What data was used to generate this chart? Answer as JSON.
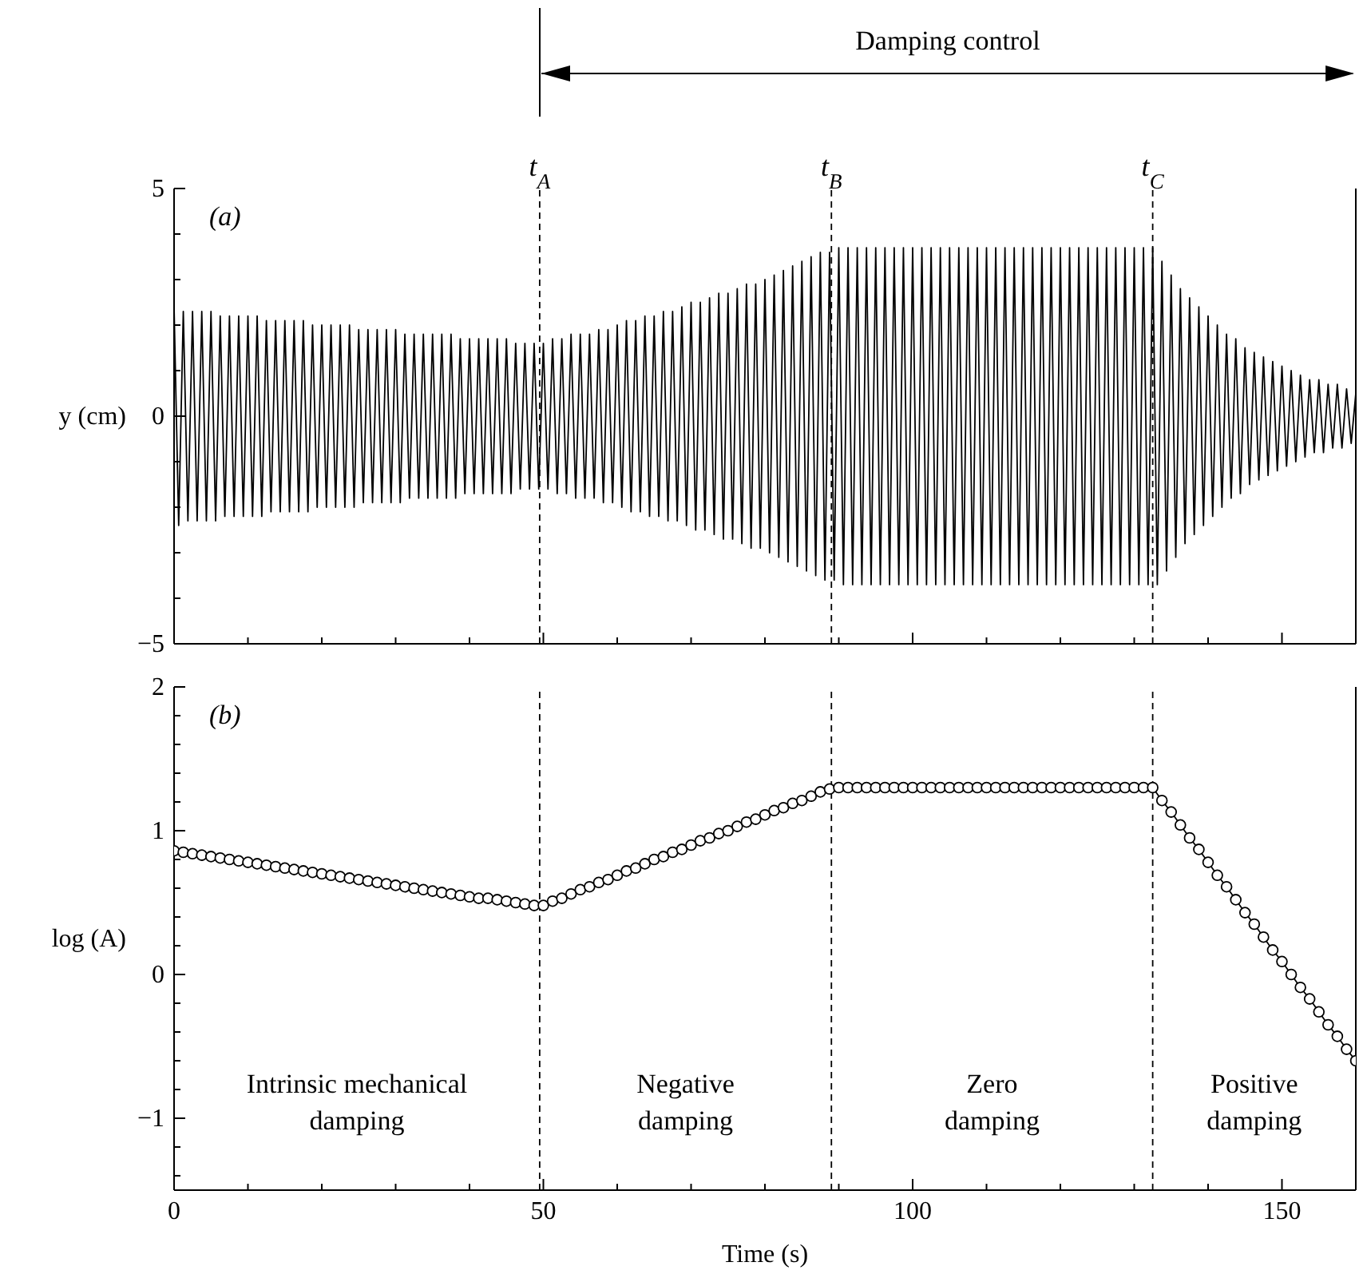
{
  "chart_data": [
    {
      "type": "line",
      "ylabel": "y (cm)",
      "xlim": [
        0,
        160
      ],
      "ylim": [
        -5,
        5
      ],
      "xticks": [
        0,
        {
          "value": 10,
          "label": null
        },
        {
          "value": 20,
          "label": null
        },
        {
          "value": 30,
          "label": null
        },
        {
          "value": 40,
          "label": null
        },
        50,
        {
          "value": 60,
          "label": null
        },
        {
          "value": 70,
          "label": null
        },
        {
          "value": 80,
          "label": null
        },
        {
          "value": 90,
          "label": null
        },
        100,
        {
          "value": 110,
          "label": null
        },
        {
          "value": 120,
          "label": null
        },
        {
          "value": 130,
          "label": null
        },
        {
          "value": 140,
          "label": null
        },
        150
      ],
      "yticks": [
        {
          "value": -5,
          "label": "−5"
        },
        {
          "value": -4,
          "label": null
        },
        {
          "value": -3,
          "label": null
        },
        {
          "value": -2,
          "label": null
        },
        {
          "value": -1,
          "label": null
        },
        0,
        {
          "value": 1,
          "label": null
        },
        {
          "value": 2,
          "label": null
        },
        {
          "value": 3,
          "label": null
        },
        {
          "value": 4,
          "label": null
        },
        5
      ],
      "tick_labels": "y",
      "marker": "none",
      "line_style": "solid",
      "annotations": [
        "(a)",
        "Damping control"
      ],
      "ref_lines": [
        {
          "axis": "x",
          "value": 49.5,
          "label": "t$_{A}$",
          "line_style": "dashed",
          "color": "#000000"
        },
        {
          "axis": "x",
          "value": 89,
          "label": "t$_{B}$",
          "line_style": "dashed",
          "color": "#000000"
        },
        {
          "axis": "x",
          "value": 132.5,
          "label": "t$_{C}$",
          "line_style": "dashed",
          "color": "#000000"
        }
      ],
      "series": [
        {
          "color": "#000000",
          "x": [
            0,
            0.625,
            1.25,
            1.875,
            2.5,
            3.125,
            3.75,
            4.375,
            5,
            5.625,
            6.25,
            6.875,
            7.5,
            8.125,
            8.75,
            9.375,
            10,
            10.625,
            11.25,
            11.875,
            12.5,
            13.125,
            13.75,
            14.375,
            15,
            15.625,
            16.25,
            16.875,
            17.5,
            18.125,
            18.75,
            19.375,
            20,
            20.625,
            21.25,
            21.875,
            22.5,
            23.125,
            23.75,
            24.375,
            25,
            25.625,
            26.25,
            26.875,
            27.5,
            28.125,
            28.75,
            29.375,
            30,
            30.625,
            31.25,
            31.875,
            32.5,
            33.125,
            33.75,
            34.375,
            35,
            35.625,
            36.25,
            36.875,
            37.5,
            38.125,
            38.75,
            39.375,
            40,
            40.625,
            41.25,
            41.875,
            42.5,
            43.125,
            43.75,
            44.375,
            45,
            45.625,
            46.25,
            46.875,
            47.5,
            48.125,
            48.75,
            49.375,
            50,
            50.625,
            51.25,
            51.875,
            52.5,
            53.125,
            53.75,
            54.375,
            55,
            55.625,
            56.25,
            56.875,
            57.5,
            58.125,
            58.75,
            59.375,
            60,
            60.625,
            61.25,
            61.875,
            62.5,
            63.125,
            63.75,
            64.375,
            65,
            65.625,
            66.25,
            66.875,
            67.5,
            68.125,
            68.75,
            69.375,
            70,
            70.625,
            71.25,
            71.875,
            72.5,
            73.125,
            73.75,
            74.375,
            75,
            75.625,
            76.25,
            76.875,
            77.5,
            78.125,
            78.75,
            79.375,
            80,
            80.625,
            81.25,
            81.875,
            82.5,
            83.125,
            83.75,
            84.375,
            85,
            85.625,
            86.25,
            86.875,
            87.5,
            88.125,
            88.75,
            89.375,
            90,
            90.625,
            91.25,
            91.875,
            92.5,
            93.125,
            93.75,
            94.375,
            95,
            95.625,
            96.25,
            96.875,
            97.5,
            98.125,
            98.75,
            99.375,
            100,
            100.625,
            101.25,
            101.875,
            102.5,
            103.125,
            103.75,
            104.375,
            105,
            105.625,
            106.25,
            106.875,
            107.5,
            108.125,
            108.75,
            109.375,
            110,
            110.625,
            111.25,
            111.875,
            112.5,
            113.125,
            113.75,
            114.375,
            115,
            115.625,
            116.25,
            116.875,
            117.5,
            118.125,
            118.75,
            119.375,
            120,
            120.625,
            121.25,
            121.875,
            122.5,
            123.125,
            123.75,
            124.375,
            125,
            125.625,
            126.25,
            126.875,
            127.5,
            128.125,
            128.75,
            129.375,
            130,
            130.625,
            131.25,
            131.875,
            132.5,
            133.125,
            133.75,
            134.375,
            135,
            135.625,
            136.25,
            136.875,
            137.5,
            138.125,
            138.75,
            139.375,
            140,
            140.625,
            141.25,
            141.875,
            142.5,
            143.125,
            143.75,
            144.375,
            145,
            145.625,
            146.25,
            146.875,
            147.5,
            148.125,
            148.75,
            149.375,
            150,
            150.625,
            151.25,
            151.875,
            152.5,
            153.125,
            153.75,
            154.375,
            155,
            155.625,
            156.25,
            156.875,
            157.5,
            158.125,
            158.75,
            159.375,
            160
          ],
          "values": [
            2.4,
            -2.4,
            2.3,
            -2.3,
            2.3,
            -2.3,
            2.3,
            -2.3,
            2.3,
            -2.3,
            2.2,
            -2.2,
            2.2,
            -2.2,
            2.2,
            -2.2,
            2.2,
            -2.2,
            2.2,
            -2.2,
            2.1,
            -2.1,
            2.1,
            -2.1,
            2.1,
            -2.1,
            2.1,
            -2.1,
            2.1,
            -2.1,
            2.0,
            -2.0,
            2.0,
            -2.0,
            2.0,
            -2.0,
            2.0,
            -2.0,
            2.0,
            -2.0,
            1.9,
            -1.9,
            1.9,
            -1.9,
            1.9,
            -1.9,
            1.9,
            -1.9,
            1.9,
            -1.9,
            1.8,
            -1.8,
            1.8,
            -1.8,
            1.8,
            -1.8,
            1.8,
            -1.8,
            1.8,
            -1.8,
            1.8,
            -1.8,
            1.7,
            -1.7,
            1.7,
            -1.7,
            1.7,
            -1.7,
            1.7,
            -1.7,
            1.7,
            -1.7,
            1.7,
            -1.7,
            1.6,
            -1.6,
            1.6,
            -1.6,
            1.6,
            -1.6,
            1.6,
            -1.6,
            1.7,
            -1.7,
            1.7,
            -1.7,
            1.8,
            -1.8,
            1.8,
            -1.8,
            1.8,
            -1.8,
            1.9,
            -1.9,
            1.9,
            -1.9,
            2.0,
            -2.0,
            2.1,
            -2.1,
            2.1,
            -2.1,
            2.2,
            -2.2,
            2.2,
            -2.2,
            2.3,
            -2.3,
            2.3,
            -2.3,
            2.4,
            -2.4,
            2.5,
            -2.5,
            2.5,
            -2.5,
            2.6,
            -2.6,
            2.7,
            -2.7,
            2.7,
            -2.7,
            2.8,
            -2.8,
            2.9,
            -2.9,
            2.9,
            -2.9,
            3.0,
            -3.0,
            3.1,
            -3.1,
            3.2,
            -3.2,
            3.3,
            -3.3,
            3.4,
            -3.4,
            3.5,
            -3.5,
            3.6,
            -3.6,
            3.6,
            -3.6,
            3.7,
            -3.7,
            3.7,
            -3.7,
            3.7,
            -3.7,
            3.7,
            -3.7,
            3.7,
            -3.7,
            3.7,
            -3.7,
            3.7,
            -3.7,
            3.7,
            -3.7,
            3.7,
            -3.7,
            3.7,
            -3.7,
            3.7,
            -3.7,
            3.7,
            -3.7,
            3.7,
            -3.7,
            3.7,
            -3.7,
            3.7,
            -3.7,
            3.7,
            -3.7,
            3.7,
            -3.7,
            3.7,
            -3.7,
            3.7,
            -3.7,
            3.7,
            -3.7,
            3.7,
            -3.7,
            3.7,
            -3.7,
            3.7,
            -3.7,
            3.7,
            -3.7,
            3.7,
            -3.7,
            3.7,
            -3.7,
            3.7,
            -3.7,
            3.7,
            -3.7,
            3.7,
            -3.7,
            3.7,
            -3.7,
            3.7,
            -3.7,
            3.7,
            -3.7,
            3.7,
            -3.7,
            3.7,
            -3.7,
            3.7,
            -3.7,
            3.4,
            -3.4,
            3.1,
            -3.1,
            2.8,
            -2.8,
            2.6,
            -2.6,
            2.4,
            -2.4,
            2.2,
            -2.2,
            2.0,
            -2.0,
            1.8,
            -1.8,
            1.7,
            -1.7,
            1.5,
            -1.5,
            1.4,
            -1.4,
            1.3,
            -1.3,
            1.2,
            -1.2,
            1.1,
            -1.1,
            1.0,
            -1.0,
            0.9,
            -0.9,
            0.8,
            -0.8,
            0.8,
            -0.8,
            0.7,
            -0.7,
            0.7,
            -0.7,
            0.6,
            -0.6,
            0.5
          ]
        }
      ]
    },
    {
      "type": "line",
      "ylabel": "log (A)",
      "xlabel": "Time (s)",
      "xlim": [
        0,
        160
      ],
      "ylim": [
        -1.5,
        2
      ],
      "xticks": [
        0,
        {
          "value": 10,
          "label": null
        },
        {
          "value": 20,
          "label": null
        },
        {
          "value": 30,
          "label": null
        },
        {
          "value": 40,
          "label": null
        },
        50,
        {
          "value": 60,
          "label": null
        },
        {
          "value": 70,
          "label": null
        },
        {
          "value": 80,
          "label": null
        },
        {
          "value": 90,
          "label": null
        },
        100,
        {
          "value": 110,
          "label": null
        },
        {
          "value": 120,
          "label": null
        },
        {
          "value": 130,
          "label": null
        },
        {
          "value": 140,
          "label": null
        },
        150
      ],
      "yticks": [
        {
          "value": -1.4,
          "label": null
        },
        {
          "value": -1.2,
          "label": null
        },
        {
          "value": -1,
          "label": "−1"
        },
        {
          "value": -0.8,
          "label": null
        },
        {
          "value": -0.6,
          "label": null
        },
        {
          "value": -0.4,
          "label": null
        },
        {
          "value": -0.2,
          "label": null
        },
        0,
        {
          "value": 0.2,
          "label": null
        },
        {
          "value": 0.4,
          "label": null
        },
        {
          "value": 0.6,
          "label": null
        },
        {
          "value": 0.8,
          "label": null
        },
        1,
        {
          "value": 1.2,
          "label": null
        },
        {
          "value": 1.4,
          "label": null
        },
        {
          "value": 1.6,
          "label": null
        },
        {
          "value": 1.8,
          "label": null
        },
        2
      ],
      "marker": "circle",
      "line_style": "solid",
      "annotations": [
        "(b)",
        "Intrinsic mechanical damping",
        "Negative damping",
        "Zero damping",
        "Positive damping"
      ],
      "ref_lines": [
        {
          "axis": "x",
          "value": 49.5,
          "line_style": "dashed",
          "color": "#000000"
        },
        {
          "axis": "x",
          "value": 89,
          "line_style": "dashed",
          "color": "#000000"
        },
        {
          "axis": "x",
          "value": 132.5,
          "line_style": "dashed",
          "color": "#000000"
        }
      ],
      "series": [
        {
          "color": "#000000",
          "x": [
            0,
            1.25,
            2.5,
            3.75,
            5,
            6.25,
            7.5,
            8.75,
            10,
            11.25,
            12.5,
            13.75,
            15,
            16.25,
            17.5,
            18.75,
            20,
            21.25,
            22.5,
            23.75,
            25,
            26.25,
            27.5,
            28.75,
            30,
            31.25,
            32.5,
            33.75,
            35,
            36.25,
            37.5,
            38.75,
            40,
            41.25,
            42.5,
            43.75,
            45,
            46.25,
            47.5,
            48.75,
            50,
            51.25,
            52.5,
            53.75,
            55,
            56.25,
            57.5,
            58.75,
            60,
            61.25,
            62.5,
            63.75,
            65,
            66.25,
            67.5,
            68.75,
            70,
            71.25,
            72.5,
            73.75,
            75,
            76.25,
            77.5,
            78.75,
            80,
            81.25,
            82.5,
            83.75,
            85,
            86.25,
            87.5,
            88.75,
            90,
            91.25,
            92.5,
            93.75,
            95,
            96.25,
            97.5,
            98.75,
            100,
            101.25,
            102.5,
            103.75,
            105,
            106.25,
            107.5,
            108.75,
            110,
            111.25,
            112.5,
            113.75,
            115,
            116.25,
            117.5,
            118.75,
            120,
            121.25,
            122.5,
            123.75,
            125,
            126.25,
            127.5,
            128.75,
            130,
            131.25,
            132.5,
            133.75,
            135,
            136.25,
            137.5,
            138.75,
            140,
            141.25,
            142.5,
            143.75,
            145,
            146.25,
            147.5,
            148.75,
            150,
            151.25,
            152.5,
            153.75,
            155,
            156.25,
            157.5,
            158.75,
            160
          ],
          "values": [
            0.86,
            0.85,
            0.84,
            0.83,
            0.82,
            0.81,
            0.8,
            0.79,
            0.78,
            0.77,
            0.76,
            0.75,
            0.74,
            0.73,
            0.72,
            0.71,
            0.7,
            0.69,
            0.68,
            0.67,
            0.66,
            0.65,
            0.64,
            0.63,
            0.62,
            0.61,
            0.6,
            0.59,
            0.58,
            0.57,
            0.56,
            0.55,
            0.54,
            0.53,
            0.53,
            0.52,
            0.51,
            0.5,
            0.49,
            0.48,
            0.48,
            0.51,
            0.53,
            0.56,
            0.59,
            0.61,
            0.64,
            0.66,
            0.69,
            0.72,
            0.74,
            0.77,
            0.8,
            0.82,
            0.85,
            0.87,
            0.9,
            0.93,
            0.95,
            0.98,
            1.0,
            1.03,
            1.06,
            1.08,
            1.11,
            1.14,
            1.16,
            1.19,
            1.21,
            1.24,
            1.27,
            1.29,
            1.3,
            1.3,
            1.3,
            1.3,
            1.3,
            1.3,
            1.3,
            1.3,
            1.3,
            1.3,
            1.3,
            1.3,
            1.3,
            1.3,
            1.3,
            1.3,
            1.3,
            1.3,
            1.3,
            1.3,
            1.3,
            1.3,
            1.3,
            1.3,
            1.3,
            1.3,
            1.3,
            1.3,
            1.3,
            1.3,
            1.3,
            1.3,
            1.3,
            1.3,
            1.3,
            1.21,
            1.13,
            1.04,
            0.95,
            0.87,
            0.78,
            0.69,
            0.61,
            0.52,
            0.43,
            0.35,
            0.26,
            0.17,
            0.09,
            0,
            -0.09,
            -0.17,
            -0.26,
            -0.35,
            -0.43,
            -0.52,
            -0.6
          ]
        }
      ]
    }
  ]
}
